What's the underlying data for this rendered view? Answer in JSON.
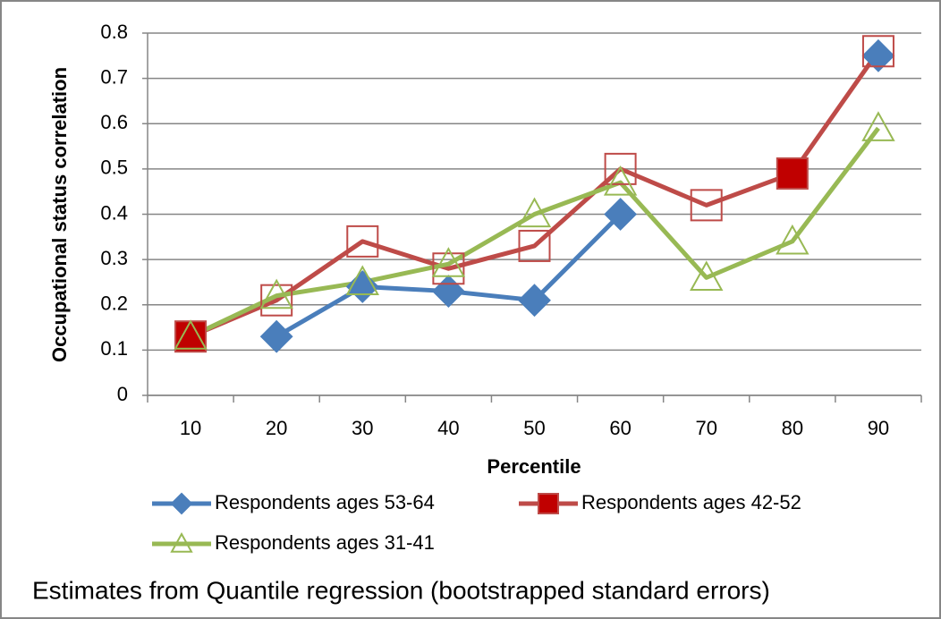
{
  "chart_data": {
    "type": "line",
    "x_label": "Percentile",
    "y_label": "Occupational status correlation",
    "caption": "Estimates from Quantile regression (bootstrapped standard errors)",
    "categories": [
      10,
      20,
      30,
      40,
      50,
      60,
      70,
      80,
      90
    ],
    "ylim": [
      0,
      0.8
    ],
    "yticks": [
      0,
      0.1,
      0.2,
      0.3,
      0.4,
      0.5,
      0.6,
      0.7,
      0.8
    ],
    "grid": true,
    "series": [
      {
        "name": "Respondents ages 53-64",
        "color": "#4a7ebb",
        "marker": "diamond",
        "marker_filled": true,
        "values": [
          null,
          0.13,
          0.24,
          0.23,
          0.21,
          0.4,
          null,
          null,
          0.75
        ]
      },
      {
        "name": "Respondents ages 42-52",
        "color": "#be4b48",
        "marker": "square",
        "marker_filled": [
          true,
          false,
          false,
          false,
          false,
          false,
          false,
          true,
          false
        ],
        "values": [
          0.13,
          0.21,
          0.34,
          0.28,
          0.33,
          0.5,
          0.42,
          0.49,
          0.76
        ]
      },
      {
        "name": "Respondents ages 31-41",
        "color": "#98b954",
        "marker": "triangle",
        "marker_filled": false,
        "values": [
          0.13,
          0.22,
          0.25,
          0.29,
          0.4,
          0.47,
          0.26,
          0.34,
          0.59
        ]
      }
    ]
  }
}
